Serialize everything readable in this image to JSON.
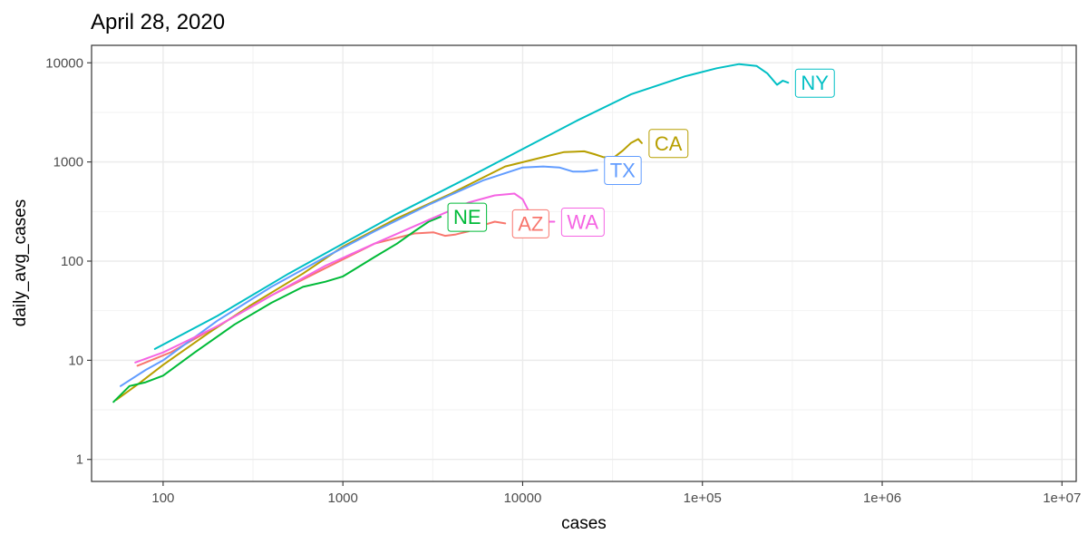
{
  "chart_data": {
    "type": "line",
    "title": "April 28, 2020",
    "xlabel": "cases",
    "ylabel": "daily_avg_cases",
    "x_scale": "log10",
    "y_scale": "log10",
    "xlim": [
      40,
      12000000
    ],
    "ylim": [
      0.6,
      15000
    ],
    "grid": true,
    "x_ticks": [
      {
        "value": 100,
        "label": "100"
      },
      {
        "value": 1000,
        "label": "1000"
      },
      {
        "value": 10000,
        "label": "10000"
      },
      {
        "value": 100000,
        "label": "1e+05"
      },
      {
        "value": 1000000,
        "label": "1e+06"
      },
      {
        "value": 10000000,
        "label": "1e+07"
      }
    ],
    "y_ticks": [
      {
        "value": 1,
        "label": "1"
      },
      {
        "value": 10,
        "label": "10"
      },
      {
        "value": 100,
        "label": "100"
      },
      {
        "value": 1000,
        "label": "1000"
      },
      {
        "value": 10000,
        "label": "10000"
      }
    ],
    "series": [
      {
        "name": "AZ",
        "color": "#F8766D",
        "x": [
          72,
          110,
          200,
          400,
          800,
          1500,
          2500,
          3200,
          3700,
          4200,
          5000,
          6000,
          7000,
          8000
        ],
        "y": [
          8.8,
          12,
          22,
          45,
          85,
          150,
          190,
          195,
          180,
          185,
          200,
          230,
          250,
          240
        ],
        "label": "AZ",
        "label_at": [
          8000,
          240
        ]
      },
      {
        "name": "CA",
        "color": "#B79F00",
        "x": [
          55,
          75,
          100,
          180,
          300,
          600,
          1000,
          2000,
          4000,
          8000,
          12000,
          17000,
          22000,
          25000,
          28000,
          32000,
          36000,
          40000,
          44000,
          46000
        ],
        "y": [
          4,
          6,
          9,
          19,
          35,
          75,
          140,
          270,
          480,
          900,
          1080,
          1260,
          1280,
          1200,
          1120,
          1100,
          1300,
          1550,
          1700,
          1550
        ],
        "label": "CA",
        "label_at": [
          46000,
          1550
        ]
      },
      {
        "name": "NE",
        "color": "#00BA38",
        "x": [
          53,
          65,
          80,
          100,
          150,
          250,
          400,
          600,
          800,
          1000,
          1500,
          2000,
          2500,
          3000,
          3500
        ],
        "y": [
          3.8,
          5.5,
          6,
          7,
          12,
          23,
          38,
          55,
          62,
          70,
          110,
          150,
          200,
          250,
          280
        ],
        "label": "NE",
        "label_at": [
          3500,
          280
        ]
      },
      {
        "name": "NY",
        "color": "#00BFC4",
        "x": [
          90,
          200,
          500,
          1000,
          2000,
          5000,
          10000,
          20000,
          40000,
          80000,
          120000,
          160000,
          200000,
          230000,
          260000,
          280000,
          300000
        ],
        "y": [
          13,
          28,
          75,
          150,
          300,
          700,
          1350,
          2600,
          4800,
          7300,
          8800,
          9700,
          9300,
          7800,
          6000,
          6600,
          6300
        ],
        "label": "NY",
        "label_at": [
          300000,
          6300
        ]
      },
      {
        "name": "TX",
        "color": "#619CFF",
        "x": [
          58,
          80,
          100,
          200,
          400,
          800,
          1500,
          3000,
          6000,
          10000,
          13000,
          16000,
          19000,
          22000,
          26000
        ],
        "y": [
          5.5,
          8,
          10,
          25,
          55,
          110,
          200,
          370,
          650,
          880,
          900,
          880,
          800,
          800,
          830
        ],
        "label": "TX",
        "label_at": [
          26000,
          830
        ]
      },
      {
        "name": "WA",
        "color": "#F564E3",
        "x": [
          70,
          100,
          200,
          400,
          800,
          1500,
          3000,
          5000,
          7000,
          9000,
          10000,
          11000,
          13000,
          15000
        ],
        "y": [
          9.5,
          12,
          22,
          45,
          90,
          150,
          260,
          390,
          460,
          480,
          420,
          300,
          250,
          250
        ],
        "label": "WA",
        "label_at": [
          15000,
          250
        ]
      }
    ]
  }
}
